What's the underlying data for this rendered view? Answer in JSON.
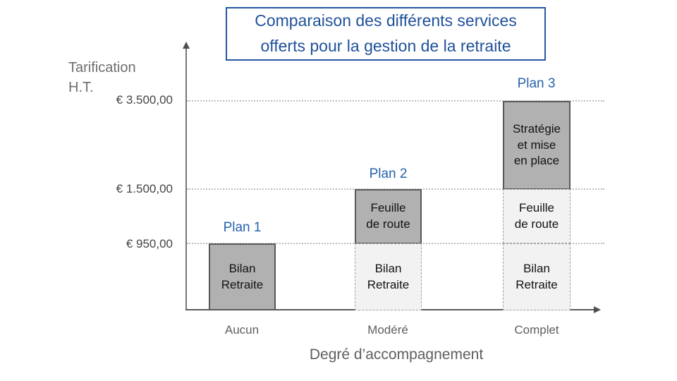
{
  "chart_data": {
    "type": "bar",
    "stacked": true,
    "title": "Comparaison des différents services offerts pour la gestion de la retraite",
    "xlabel": "Degré d’accompagnement",
    "ylabel": "Tarification H.T.",
    "categories": [
      "Aucun",
      "Modéré",
      "Complet"
    ],
    "bar_labels": [
      "Plan 1",
      "Plan 2",
      "Plan 3"
    ],
    "series": [
      {
        "name": "Bilan Retraite",
        "values": [
          950,
          950,
          950
        ]
      },
      {
        "name": "Feuille de route",
        "values": [
          0,
          550,
          550
        ]
      },
      {
        "name": "Stratégie et mise en place",
        "values": [
          0,
          0,
          2000
        ]
      }
    ],
    "bar_totals_eur": [
      950,
      1500,
      3500
    ],
    "y_ticks": [
      "€ 3.500,00",
      "€ 1.500,00",
      "€ 950,00"
    ],
    "grid": "horizontal dotted lines at each y tick",
    "legend_position": "none",
    "colors": {
      "highlighted_segment_fill": "#B1B1B1",
      "highlighted_segment_border": "#595959",
      "base_segment_fill": "#F2F2F2",
      "base_segment_border_dashed": "#A0A0A0",
      "accent_blue": "#1F519B",
      "axis_gray": "#5C5C5C"
    }
  },
  "display": {
    "title": "Comparaison des différents services\nofferts pour la gestion de la retraite",
    "y_axis_label": "Tarification\nH.T.",
    "tick_3500": "€ 3.500,00",
    "tick_1500": "€ 1.500,00",
    "tick_950": "€ 950,00",
    "plan1_label": "Plan 1",
    "plan2_label": "Plan 2",
    "plan3_label": "Plan 3",
    "segment_bilan": "Bilan\nRetraite",
    "segment_feuille": "Feuille\nde route",
    "segment_strategie": "Stratégie\net mise\nen place",
    "category_1": "Aucun",
    "category_2": "Modéré",
    "category_3": "Complet",
    "x_axis_label": "Degré d’accompagnement"
  }
}
